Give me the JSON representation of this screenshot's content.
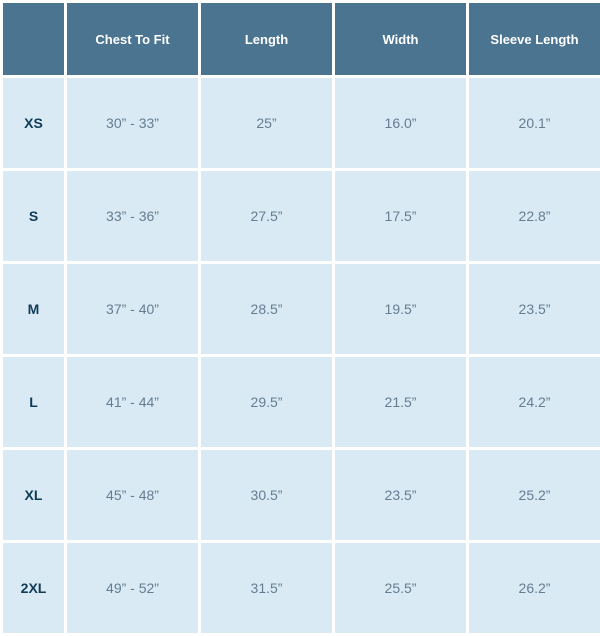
{
  "table": {
    "columns": [
      "Chest To Fit",
      "Length",
      "Width",
      "Sleeve Length"
    ],
    "size_labels": [
      "XS",
      "S",
      "M",
      "L",
      "XL",
      "2XL"
    ],
    "rows": [
      [
        "30” - 33”",
        "25”",
        "16.0”",
        "20.1”"
      ],
      [
        "33” - 36”",
        "27.5”",
        "17.5”",
        "22.8”"
      ],
      [
        "37” - 40”",
        "28.5”",
        "19.5”",
        "23.5”"
      ],
      [
        "41” - 44”",
        "29.5”",
        "21.5”",
        "24.2”"
      ],
      [
        "45” - 48”",
        "30.5”",
        "23.5”",
        "25.2”"
      ],
      [
        "49” - 52”",
        "31.5”",
        "25.5”",
        "26.2”"
      ]
    ],
    "style": {
      "header_bg": "#4a7490",
      "header_text_color": "#ffffff",
      "size_col_bg": "#d9eaf4",
      "size_col_text_color": "#0f3b57",
      "cell_bg": "#d9eaf4",
      "cell_text_color": "#657d91",
      "border_color": "#ffffff",
      "border_width": 3,
      "header_fontsize": 13,
      "body_fontsize": 14,
      "font_weight_header": "bold",
      "font_weight_size": "bold",
      "header_row_height": 70,
      "body_row_height": 88,
      "size_col_width": 64,
      "data_col_width": 134
    }
  }
}
